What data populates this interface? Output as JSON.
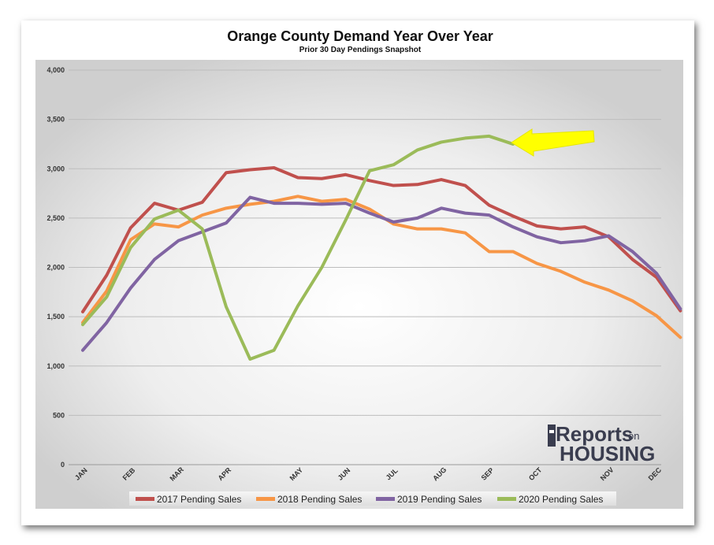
{
  "chart_data": {
    "type": "line",
    "title": "Orange County Demand Year Over Year",
    "subtitle": "Prior 30 Day Pendings Snapshot",
    "ylim": [
      0,
      4000
    ],
    "yticks": [
      0,
      500,
      1000,
      1500,
      2000,
      2500,
      3000,
      3500,
      4000
    ],
    "ytick_labels": [
      "0",
      "500",
      "1,000",
      "1,500",
      "2,000",
      "2,500",
      "3,000",
      "3,500",
      "4,000"
    ],
    "xlim": [
      0,
      24
    ],
    "xtick_labels": [
      {
        "label": "JAN",
        "x": 0
      },
      {
        "label": "FEB",
        "x": 2
      },
      {
        "label": "MAR",
        "x": 4
      },
      {
        "label": "APR",
        "x": 6
      },
      {
        "label": "MAY",
        "x": 9
      },
      {
        "label": "JUN",
        "x": 11
      },
      {
        "label": "JUL",
        "x": 13
      },
      {
        "label": "AUG",
        "x": 15
      },
      {
        "label": "SEP",
        "x": 17
      },
      {
        "label": "OCT",
        "x": 19
      },
      {
        "label": "NOV",
        "x": 22
      },
      {
        "label": "DEC",
        "x": 24
      }
    ],
    "grid": true,
    "legend_position": "bottom",
    "series": [
      {
        "name": "2017 Pending Sales",
        "color": "#c0504d",
        "values": [
          1550,
          1920,
          2400,
          2650,
          2580,
          2660,
          2960,
          2990,
          3010,
          2910,
          2900,
          2940,
          2880,
          2830,
          2840,
          2890,
          2830,
          2630,
          2520,
          2420,
          2390,
          2410,
          2310,
          2080,
          1900,
          1560
        ]
      },
      {
        "name": "2018 Pending Sales",
        "color": "#f79646",
        "values": [
          1440,
          1760,
          2280,
          2440,
          2410,
          2530,
          2600,
          2640,
          2670,
          2720,
          2670,
          2690,
          2590,
          2440,
          2390,
          2390,
          2350,
          2160,
          2160,
          2040,
          1960,
          1850,
          1770,
          1660,
          1510,
          1290
        ]
      },
      {
        "name": "2019 Pending Sales",
        "color": "#8064a2",
        "values": [
          1160,
          1440,
          1790,
          2080,
          2270,
          2360,
          2450,
          2710,
          2650,
          2650,
          2640,
          2650,
          2550,
          2460,
          2500,
          2600,
          2550,
          2530,
          2410,
          2310,
          2250,
          2270,
          2320,
          2160,
          1940,
          1580
        ]
      },
      {
        "name": "2020 Pending Sales",
        "color": "#9bbb59",
        "values": [
          1420,
          1700,
          2200,
          2490,
          2580,
          2390,
          1600,
          1070,
          1160,
          1610,
          2000,
          2480,
          2980,
          3040,
          3190,
          3270,
          3310,
          3330,
          3250
        ]
      }
    ],
    "annotations": [
      {
        "type": "arrow",
        "color": "#ffff00",
        "pointing_to": "2020 Pending Sales latest value"
      }
    ]
  },
  "logo": {
    "part1": "Reports",
    "part2": "on",
    "part3": "HOUSING"
  }
}
